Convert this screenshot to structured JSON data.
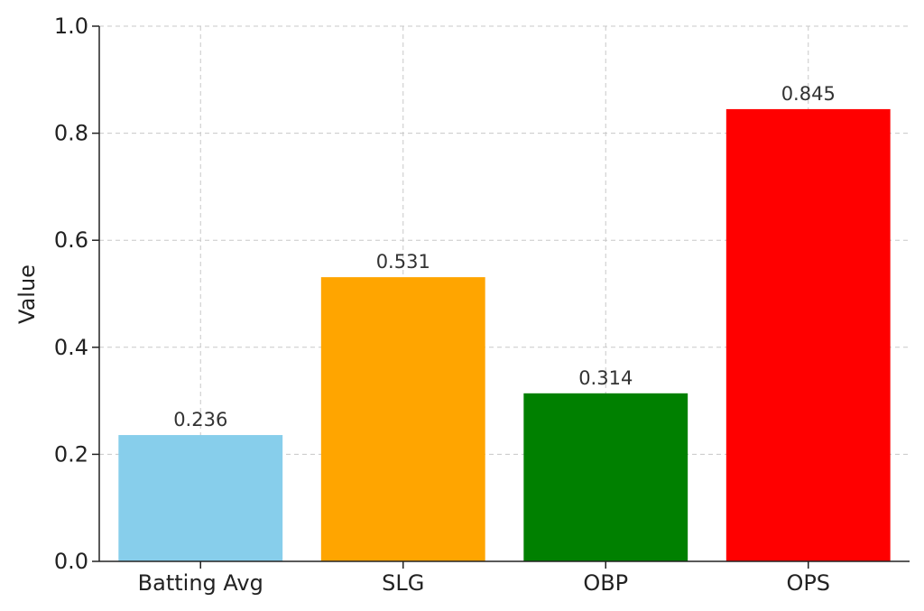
{
  "chart_data": {
    "type": "bar",
    "title": "",
    "xlabel": "",
    "ylabel": "Value",
    "categories": [
      "Batting Avg",
      "SLG",
      "OBP",
      "OPS"
    ],
    "values": [
      0.236,
      0.531,
      0.314,
      0.845
    ],
    "value_labels": [
      "0.236",
      "0.531",
      "0.314",
      "0.845"
    ],
    "colors": [
      "#87ceeb",
      "#ffa500",
      "#008000",
      "#ff0000"
    ],
    "ylim": [
      0,
      1.0
    ],
    "yticks": [
      0.0,
      0.2,
      0.4,
      0.6,
      0.8,
      1.0
    ],
    "ytick_labels": [
      "0.0",
      "0.2",
      "0.4",
      "0.6",
      "0.8",
      "1.0"
    ],
    "grid": true
  }
}
